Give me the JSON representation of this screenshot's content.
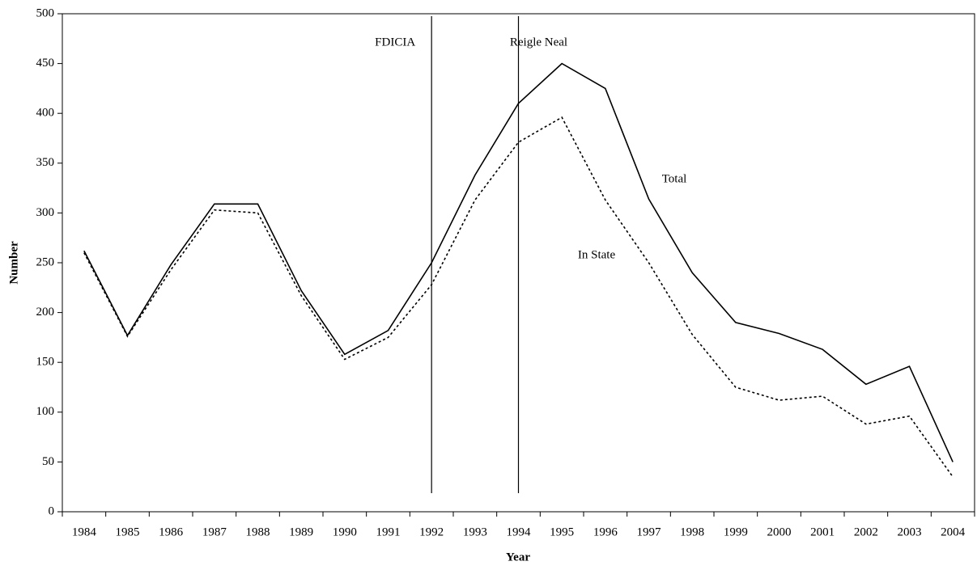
{
  "chart_data": {
    "type": "line",
    "x_label": "Year",
    "y_label": "Number",
    "categories": [
      "1984",
      "1985",
      "1986",
      "1987",
      "1988",
      "1989",
      "1990",
      "1991",
      "1992",
      "1993",
      "1994",
      "1995",
      "1996",
      "1997",
      "1998",
      "1999",
      "2000",
      "2001",
      "2002",
      "2003",
      "2004"
    ],
    "series": [
      {
        "name": "Total",
        "color": "#000000",
        "dash": "solid",
        "values": [
          262,
          177,
          248,
          309,
          309,
          222,
          158,
          182,
          250,
          338,
          410,
          450,
          425,
          314,
          240,
          190,
          179,
          163,
          128,
          146,
          50
        ]
      },
      {
        "name": "In State",
        "color": "#000000",
        "dash": "dotted",
        "values": [
          260,
          176,
          243,
          303,
          300,
          217,
          153,
          175,
          228,
          313,
          371,
          396,
          313,
          250,
          178,
          125,
          112,
          116,
          88,
          96,
          35
        ]
      }
    ],
    "events": [
      {
        "label": "FDICIA",
        "x": "1992"
      },
      {
        "label": "Reigle Neal",
        "x": "1994"
      }
    ],
    "ylim": [
      0,
      500
    ],
    "yticks": [
      0,
      50,
      100,
      150,
      200,
      250,
      300,
      350,
      400,
      450,
      500
    ],
    "grid": false
  }
}
